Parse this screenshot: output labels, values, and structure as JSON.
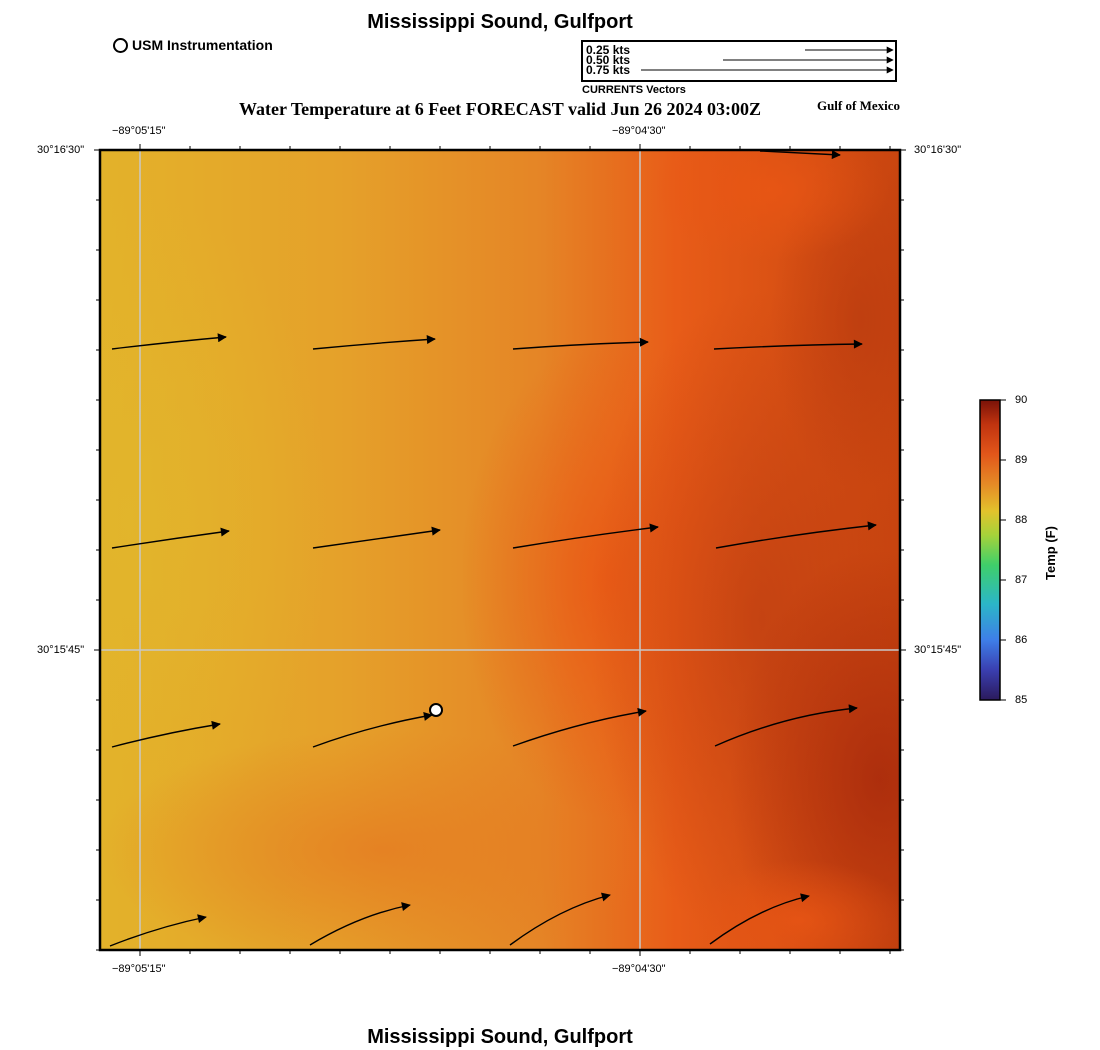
{
  "header": {
    "location_title": "Mississippi Sound, Gulfport",
    "usm_legend_label": "USM Instrumentation",
    "main_title": "Water Temperature at 6 Feet FORECAST valid Jun 26 2024 03:00Z",
    "region_label": "Gulf of Mexico"
  },
  "vector_legend": {
    "caption": "CURRENTS Vectors",
    "items": [
      "0.25 kts",
      "0.50 kts",
      "0.75 kts"
    ]
  },
  "axes": {
    "lon_labels": [
      "−89°05'15\"",
      "−89°04'30\""
    ],
    "lat_labels": [
      "30°16'30\"",
      "30°15'45\""
    ]
  },
  "colorbar": {
    "title": "Temp (F)",
    "ticks": [
      "90",
      "89",
      "88",
      "87",
      "86",
      "85"
    ]
  },
  "footer": {
    "location_title": "Mississippi Sound, Gulfport"
  },
  "colors": {
    "frame": "#000000",
    "grid": "#c8c8c8",
    "warm_yellow": "#e3b22a",
    "mid_orange": "#e58526",
    "hot_orange": "#e85a16",
    "deep_red": "#b8320e"
  }
}
